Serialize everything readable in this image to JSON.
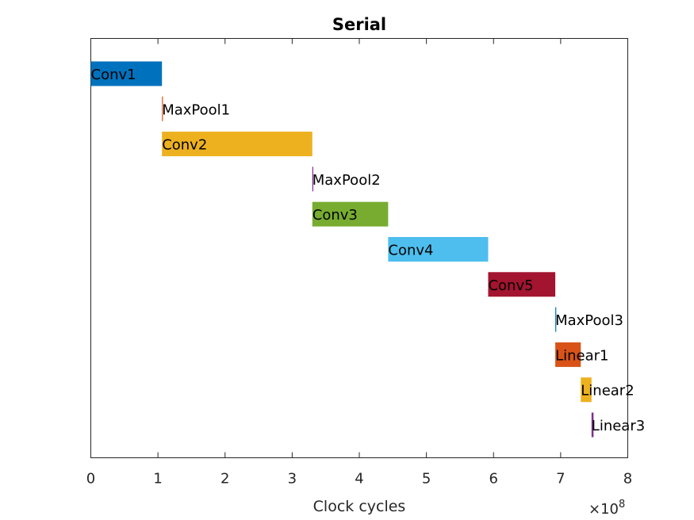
{
  "chart_data": {
    "type": "bar",
    "orientation": "horizontal-timeline",
    "title": "Serial",
    "xlabel": "Clock cycles",
    "ylabel": "",
    "x_exponent_label": "×10",
    "x_exponent_power": "8",
    "xlim": [
      0,
      8
    ],
    "x_ticks": [
      "0",
      "1",
      "2",
      "3",
      "4",
      "5",
      "6",
      "7",
      "8"
    ],
    "x_scale_factor": 100000000,
    "grid": false,
    "legend": "none",
    "tasks": [
      {
        "label": "Conv1",
        "start": 0.0,
        "end": 1.06,
        "color": "#0072BD"
      },
      {
        "label": "MaxPool1",
        "start": 1.06,
        "end": 1.07,
        "color": "#D95319"
      },
      {
        "label": "Conv2",
        "start": 1.06,
        "end": 3.3,
        "color": "#EDB120"
      },
      {
        "label": "MaxPool2",
        "start": 3.3,
        "end": 3.31,
        "color": "#7E2F8E"
      },
      {
        "label": "Conv3",
        "start": 3.3,
        "end": 4.43,
        "color": "#77AC30"
      },
      {
        "label": "Conv4",
        "start": 4.43,
        "end": 5.92,
        "color": "#4DBEEE"
      },
      {
        "label": "Conv5",
        "start": 5.92,
        "end": 6.92,
        "color": "#A2142F"
      },
      {
        "label": "MaxPool3",
        "start": 6.92,
        "end": 6.93,
        "color": "#0072BD"
      },
      {
        "label": "Linear1",
        "start": 6.92,
        "end": 7.3,
        "color": "#D95319"
      },
      {
        "label": "Linear2",
        "start": 7.3,
        "end": 7.46,
        "color": "#EDB120"
      },
      {
        "label": "Linear3",
        "start": 7.46,
        "end": 7.49,
        "color": "#7E2F8E"
      }
    ]
  }
}
